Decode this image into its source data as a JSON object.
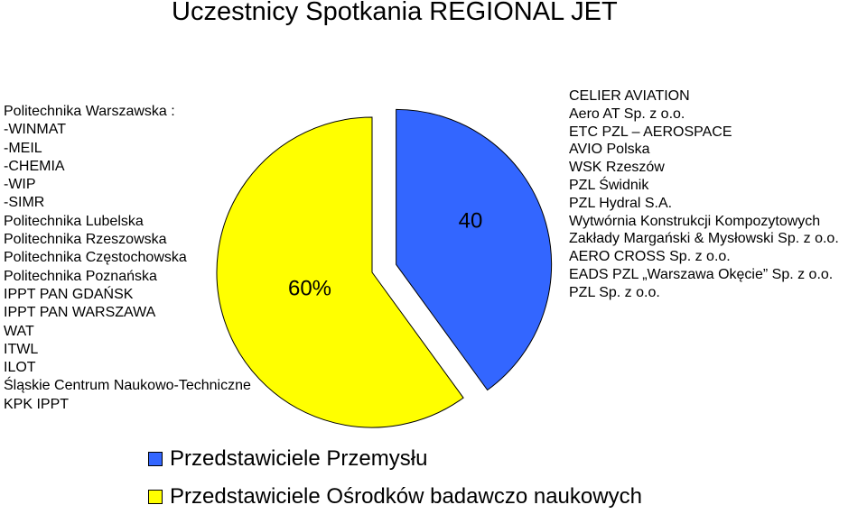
{
  "title": "Uczestnicy Spotkania REGIONAL JET",
  "left_list": [
    "Politechnika Warszawska :",
    "-WINMAT",
    "-MEIL",
    "-CHEMIA",
    "-WIP",
    "-SIMR",
    "Politechnika Lubelska",
    "Politechnika Rzeszowska",
    "Politechnika Częstochowska",
    "Politechnika Poznańska",
    "IPPT PAN GDAŃSK",
    "IPPT PAN WARSZAWA",
    "WAT",
    "ITWL",
    "ILOT",
    "Śląskie Centrum Naukowo-Techniczne",
    "KPK IPPT"
  ],
  "right_list": [
    "CELIER AVIATION",
    "Aero AT Sp. z o.o.",
    "ETC PZL – AEROSPACE",
    "AVIO Polska",
    "WSK Rzeszów",
    "PZL Świdnik",
    "PZL Hydral S.A.",
    "Wytwórnia Konstrukcji Kompozytowych",
    "Zakłady Margański & Mysłowski Sp. z o.o.",
    "AERO CROSS Sp. z o.o.",
    "EADS PZL „Warszawa Okęcie” Sp. z o.o.",
    "PZL Sp. z o.o."
  ],
  "chart_data": {
    "type": "pie",
    "title": "Uczestnicy Spotkania REGIONAL JET",
    "slices": [
      {
        "name": "Przedstawiciele Przemysłu",
        "value": 40,
        "label": "40",
        "color": "#3366ff",
        "exploded": true
      },
      {
        "name": "Przedstawiciele Ośrodków badawczo naukowych",
        "value": 60,
        "label": "60%",
        "color": "#ffff00",
        "exploded": false
      }
    ],
    "legend_position": "bottom"
  },
  "legend": [
    {
      "label": "Przedstawiciele Przemysłu",
      "color": "#3366ff"
    },
    {
      "label": "Przedstawiciele Ośrodków badawczo naukowych",
      "color": "#ffff00"
    }
  ]
}
